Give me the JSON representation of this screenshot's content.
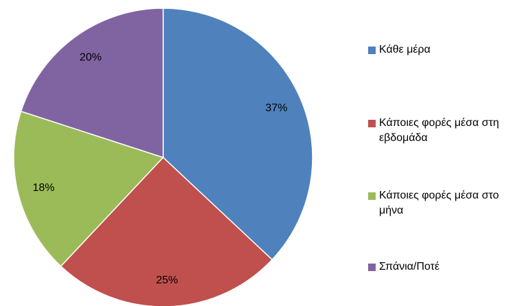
{
  "chart_data": {
    "type": "pie",
    "categories": [
      "Κάθε μέρα",
      "Κάποιες φορές μέσα στη εβδομάδα",
      "Κάποιες φορές μέσα στο μήνα",
      "Σπάνια/Ποτέ"
    ],
    "values": [
      37,
      25,
      18,
      20
    ],
    "value_labels": [
      "37%",
      "25%",
      "18%",
      "20%"
    ],
    "colors": [
      "#4f81bd",
      "#c0504d",
      "#9bbb59",
      "#8064a2"
    ],
    "legend": "right"
  }
}
